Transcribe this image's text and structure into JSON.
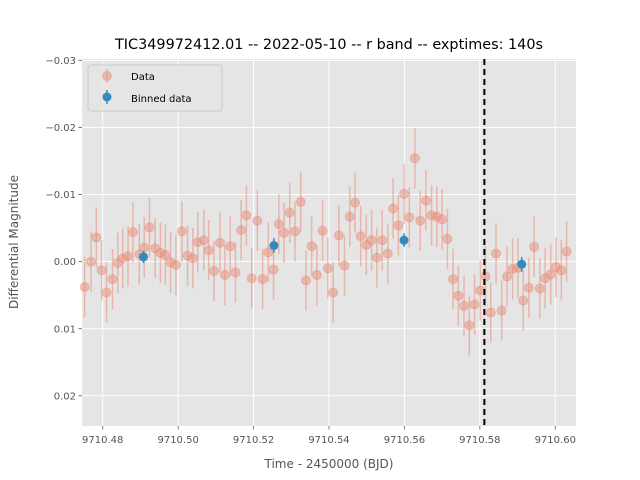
{
  "chart_data": {
    "type": "scatter",
    "title": "TIC349972412.01 -- 2022-05-10 -- r band -- exptimes: 140s",
    "xlabel": "Time - 2450000 (BJD)",
    "ylabel": "Differential Magnitude",
    "xlim": [
      9710.4745,
      9710.6055
    ],
    "ylim": [
      0.0245,
      -0.0302
    ],
    "y_inverted": true,
    "grid": true,
    "legend_position": "upper-left",
    "x_ticks": [
      9710.48,
      9710.5,
      9710.52,
      9710.54,
      9710.56,
      9710.58,
      9710.6
    ],
    "x_tick_labels": [
      "9710.48",
      "9710.50",
      "9710.52",
      "9710.54",
      "9710.56",
      "9710.58",
      "9710.60"
    ],
    "y_ticks": [
      -0.03,
      -0.02,
      -0.01,
      0.0,
      0.01,
      0.02
    ],
    "y_tick_labels": [
      "−0.03",
      "−0.02",
      "−0.01",
      "0.00",
      "0.01",
      "0.02"
    ],
    "vertical_line_x": 9710.5812,
    "series": [
      {
        "name": "Data",
        "color": "#e8907b",
        "x": [
          9710.4752,
          9710.4769,
          9710.4783,
          9710.4797,
          9710.481,
          9710.4826,
          9710.484,
          9710.4853,
          9710.4867,
          9710.488,
          9710.4897,
          9710.491,
          9710.4924,
          9710.4939,
          9710.4953,
          9710.4966,
          9710.498,
          9710.4994,
          9710.501,
          9710.5025,
          9710.5039,
          9710.5052,
          9710.5068,
          9710.5081,
          9710.5095,
          9710.5111,
          9710.5124,
          9710.5138,
          9710.5152,
          9710.5167,
          9710.5181,
          9710.5195,
          9710.521,
          9710.5224,
          9710.5239,
          9710.5253,
          9710.5267,
          9710.5281,
          9710.5296,
          9710.531,
          9710.5325,
          9710.5339,
          9710.5354,
          9710.5368,
          9710.5383,
          9710.5397,
          9710.5411,
          9710.5426,
          9710.5441,
          9710.5455,
          9710.5469,
          9710.5484,
          9710.5499,
          9710.5513,
          9710.5527,
          9710.5541,
          9710.5556,
          9710.557,
          9710.5584,
          9710.5599,
          9710.5613,
          9710.5628,
          9710.5642,
          9710.5657,
          9710.5672,
          9710.5686,
          9710.57,
          9710.5714,
          9710.5729,
          9710.5743,
          9710.5758,
          9710.5772,
          9710.5786,
          9710.5801,
          9710.5815,
          9710.5829,
          9710.5843,
          9710.5858,
          9710.5872,
          9710.5887,
          9710.5901,
          9710.5915,
          9710.593,
          9710.5944,
          9710.5959,
          9710.5973,
          9710.5988,
          9710.6002,
          9710.6016,
          9710.603
        ],
        "y": [
          0.0038,
          0.0,
          -0.0036,
          0.0013,
          0.0046,
          0.0026,
          0.0002,
          -0.0005,
          -0.0008,
          -0.0044,
          -0.0011,
          -0.0021,
          -0.0051,
          -0.002,
          -0.0013,
          -0.001,
          0.0001,
          0.0005,
          -0.0045,
          -0.0009,
          -0.0005,
          -0.0029,
          -0.0032,
          -0.0017,
          0.0014,
          -0.0028,
          0.002,
          -0.0023,
          0.0016,
          -0.0047,
          -0.0069,
          0.0025,
          -0.0061,
          0.0026,
          -0.0014,
          0.0012,
          -0.0056,
          -0.0043,
          -0.0073,
          -0.0045,
          -0.0089,
          0.0028,
          -0.0023,
          0.002,
          -0.0046,
          0.001,
          0.0046,
          -0.0039,
          0.0006,
          -0.0067,
          -0.0088,
          -0.0038,
          -0.0025,
          -0.0032,
          -0.0006,
          -0.0032,
          -0.0012,
          -0.0079,
          -0.0054,
          -0.0101,
          -0.0066,
          -0.0154,
          -0.0061,
          -0.0091,
          -0.0069,
          -0.0067,
          -0.0063,
          -0.0034,
          0.0026,
          0.0051,
          0.0066,
          0.0095,
          0.0064,
          0.0043,
          0.0022,
          0.0076,
          -0.0012,
          0.0073,
          0.0022,
          0.0011,
          0.0009,
          0.0058,
          0.0039,
          -0.0022,
          0.004,
          0.0025,
          0.0019,
          0.0008,
          0.0013,
          -0.0015
        ],
        "err": [
          0.0045,
          0.0045,
          0.0045,
          0.0045,
          0.0045,
          0.0045,
          0.0045,
          0.0045,
          0.0045,
          0.0045,
          0.0045,
          0.0045,
          0.0045,
          0.0045,
          0.0045,
          0.0045,
          0.0045,
          0.0045,
          0.0045,
          0.0045,
          0.0045,
          0.0045,
          0.0045,
          0.0045,
          0.0045,
          0.0045,
          0.0045,
          0.0045,
          0.0045,
          0.0045,
          0.0045,
          0.0045,
          0.0045,
          0.0045,
          0.0045,
          0.0045,
          0.0045,
          0.0045,
          0.0045,
          0.0045,
          0.0045,
          0.0045,
          0.0045,
          0.0045,
          0.0045,
          0.0045,
          0.0045,
          0.0045,
          0.0045,
          0.0045,
          0.0045,
          0.0045,
          0.0045,
          0.0045,
          0.0045,
          0.0045,
          0.0045,
          0.0045,
          0.0045,
          0.0045,
          0.0045,
          0.0045,
          0.0045,
          0.0045,
          0.0045,
          0.0045,
          0.0045,
          0.0045,
          0.0045,
          0.0045,
          0.0045,
          0.0045,
          0.0045,
          0.0045,
          0.0045,
          0.0045,
          0.0045,
          0.0045,
          0.0045,
          0.0045,
          0.0045,
          0.0045,
          0.0045,
          0.0045,
          0.0045,
          0.0045,
          0.0045,
          0.0045,
          0.0045,
          0.0045
        ]
      },
      {
        "name": "Binned data",
        "color": "#348abd",
        "x": [
          9710.4908,
          9710.5254,
          9710.5599,
          9710.5911
        ],
        "y": [
          -0.0007,
          -0.0024,
          -0.0032,
          0.0004
        ],
        "err": [
          0.0009,
          0.0011,
          0.001,
          0.0011
        ]
      }
    ]
  }
}
